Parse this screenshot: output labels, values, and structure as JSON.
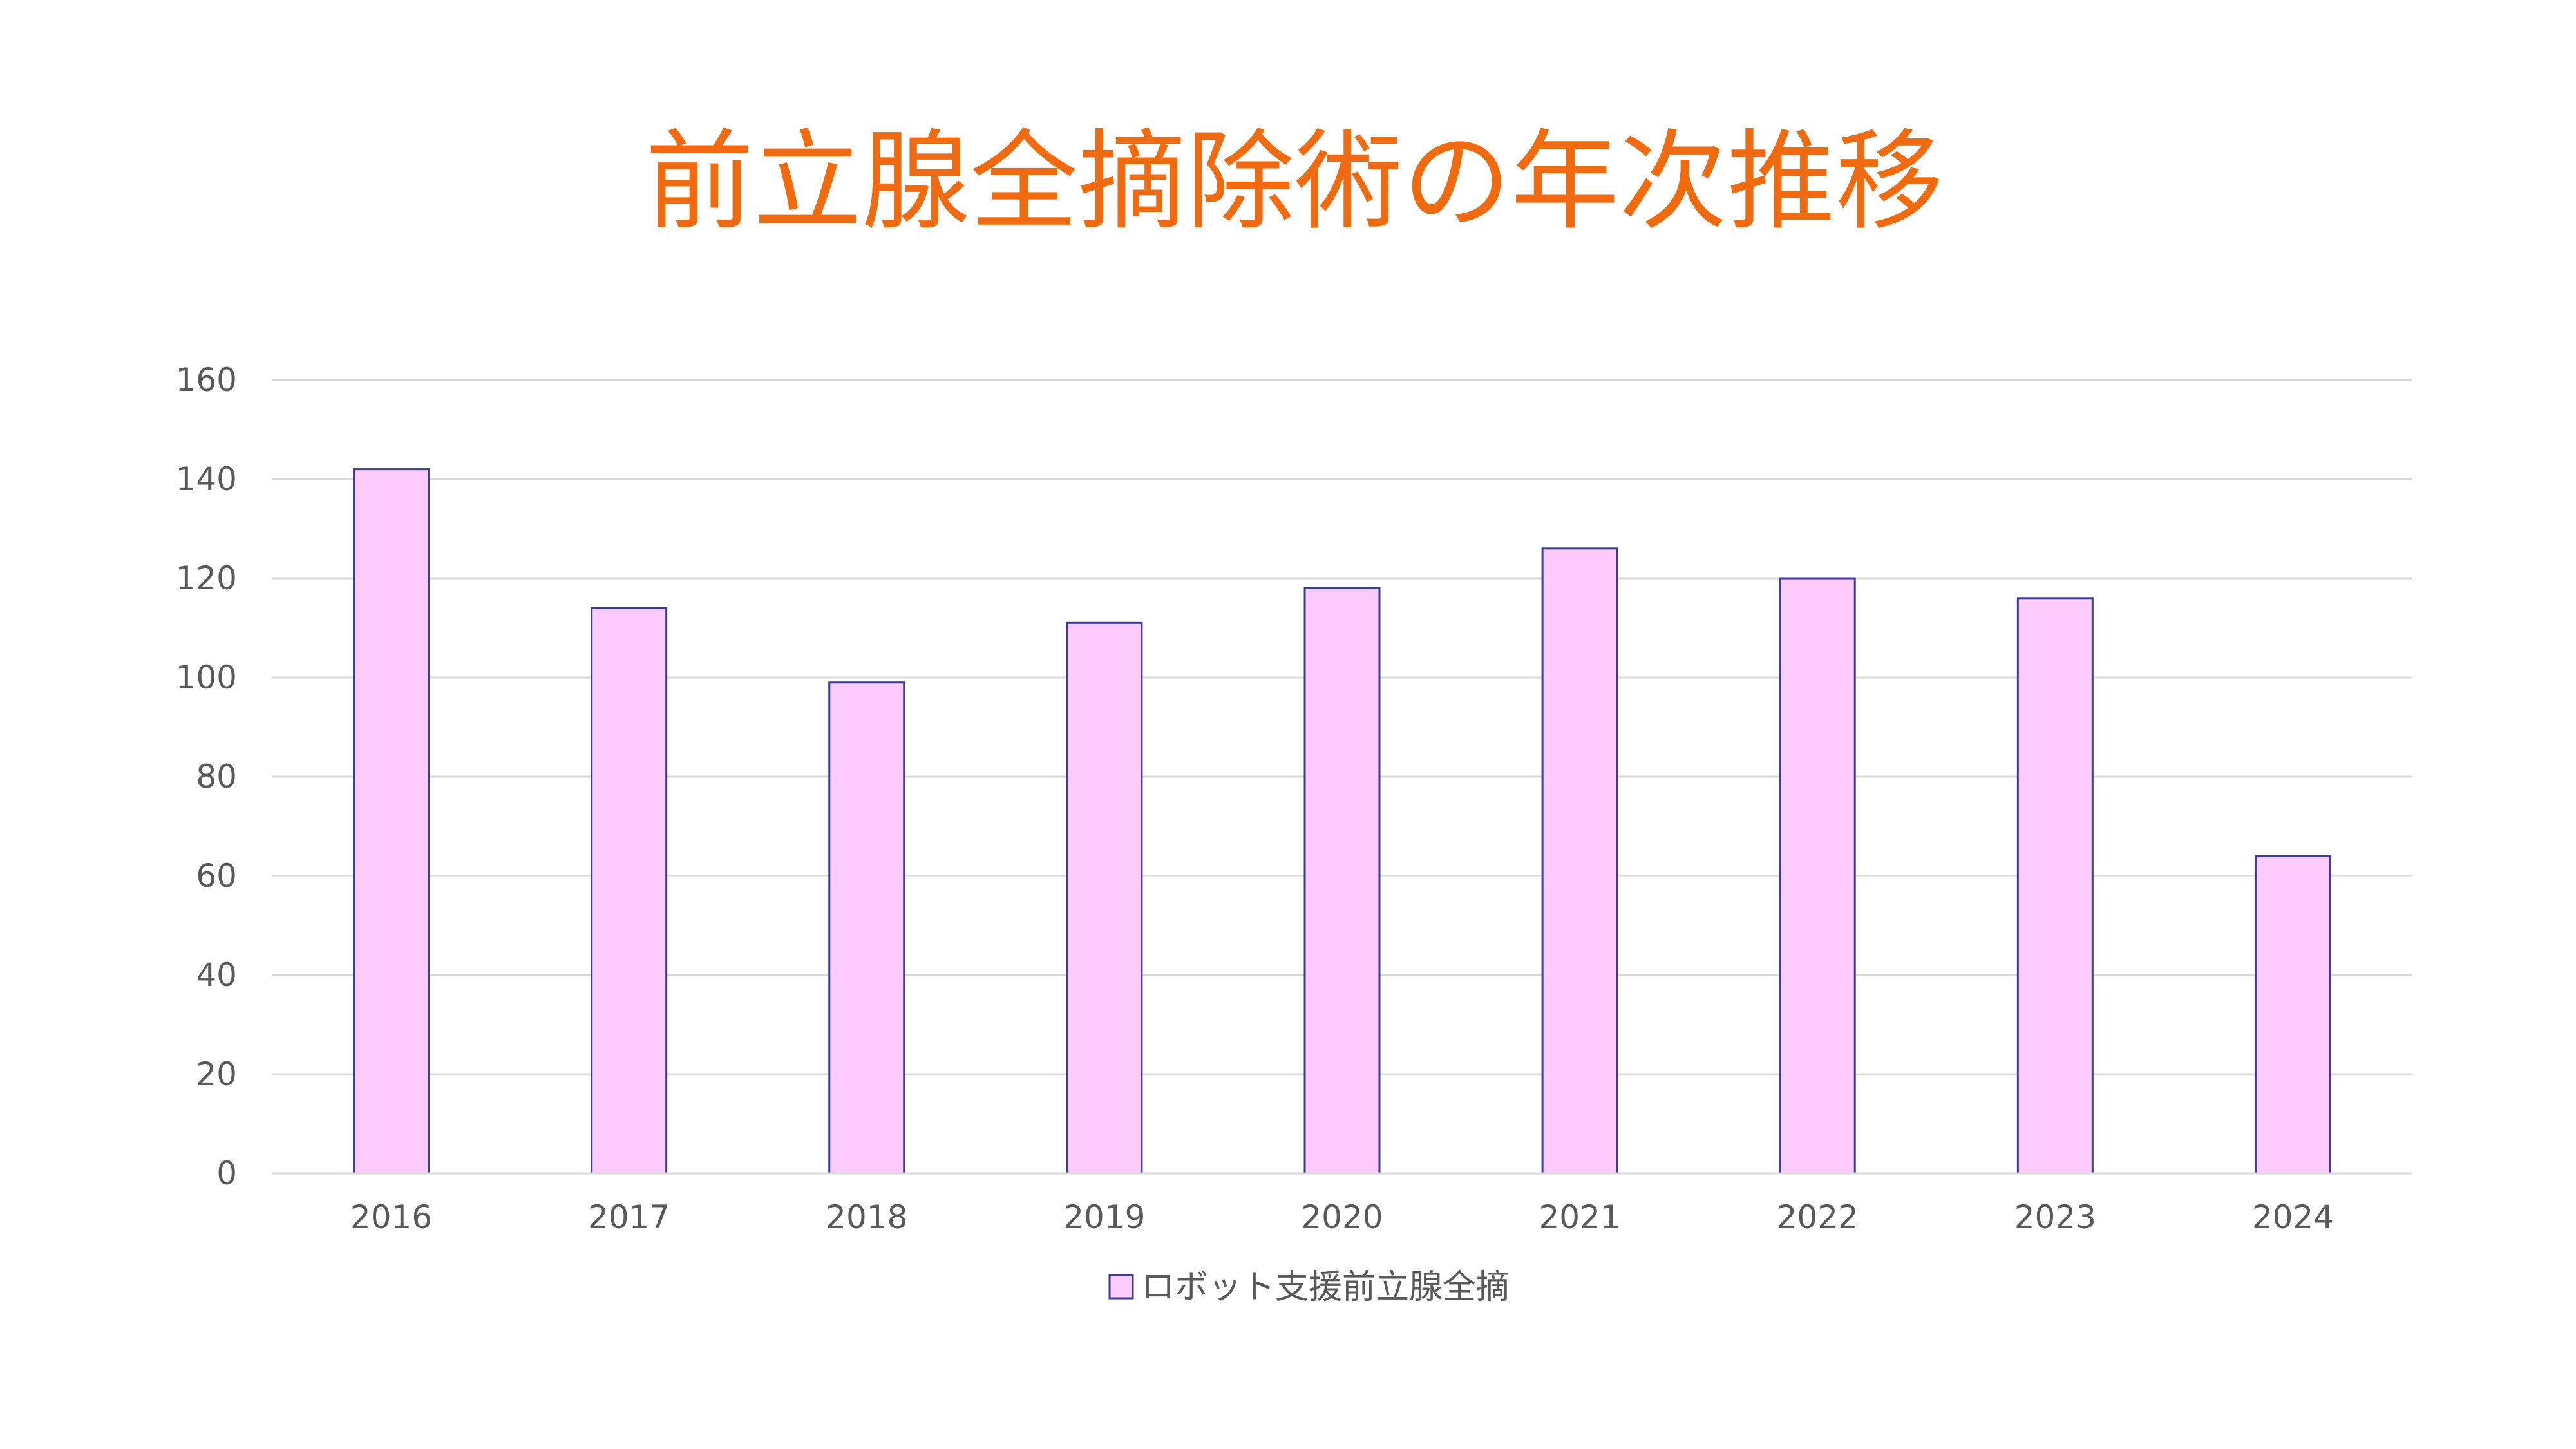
{
  "chart_data": {
    "type": "bar",
    "title": "前立腺全摘除術の年次推移",
    "categories": [
      "2016",
      "2017",
      "2018",
      "2019",
      "2020",
      "2021",
      "2022",
      "2023",
      "2024"
    ],
    "series": [
      {
        "name": "ロボット支援前立腺全摘",
        "values": [
          142,
          114,
          99,
          111,
          118,
          126,
          120,
          116,
          64
        ]
      }
    ],
    "ylim": [
      0,
      160
    ],
    "yticks": [
      0,
      20,
      40,
      60,
      80,
      100,
      120,
      140,
      160
    ],
    "grid": true,
    "legend_position": "bottom"
  },
  "colors": {
    "title": "#F26A0F",
    "bar_fill": "#FCCBFC",
    "bar_stroke": "#3B3B98",
    "grid": "#D9D9D9",
    "tick_text": "#595959"
  }
}
